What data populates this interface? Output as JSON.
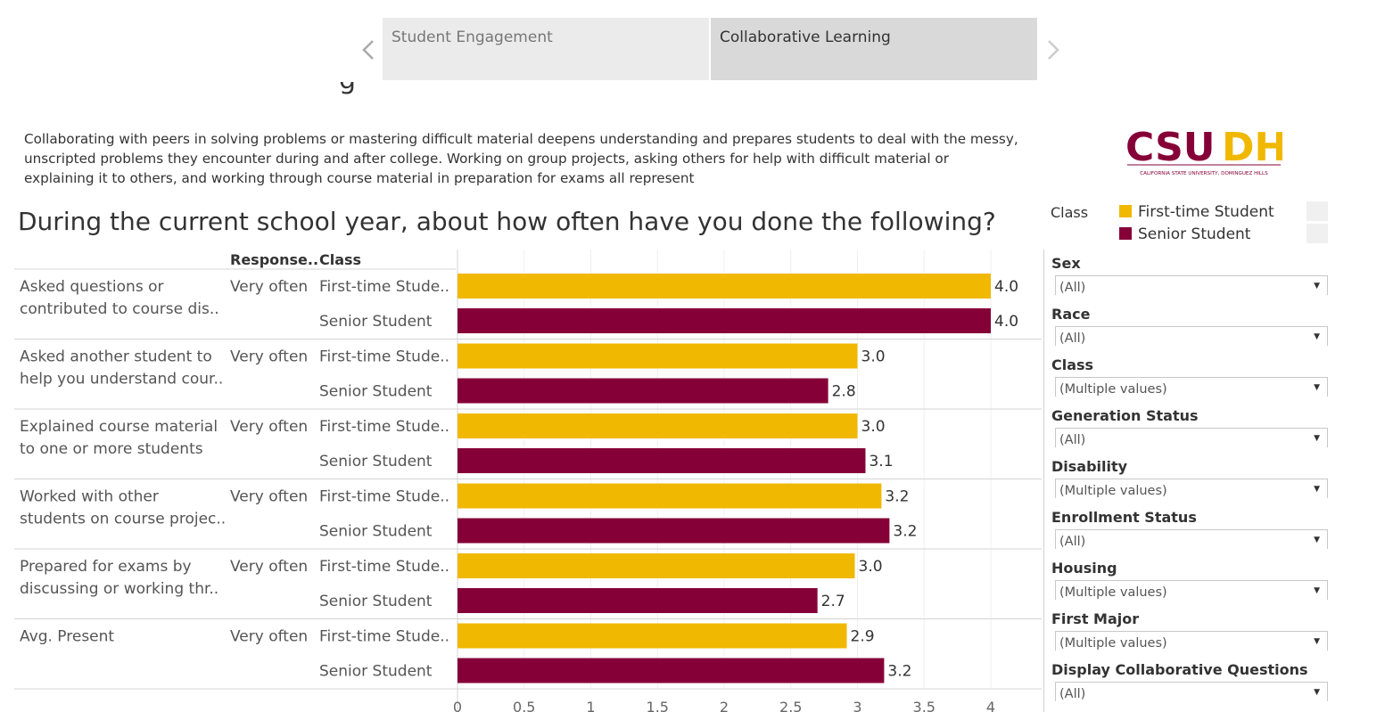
{
  "story_nav": {
    "tabs": [
      {
        "label": "Student Engagement",
        "active": false
      },
      {
        "label": "Collaborative Learning",
        "active": true
      }
    ]
  },
  "intro_text": "Collaborating with peers in solving problems or mastering difficult material deepens understanding and prepares students to deal with the messy, unscripted problems they encounter during and after college. Working on group projects, asking others for help with difficult material or explaining it to others, and working through course material in preparation for exams all represent",
  "logo": {
    "text_main": "CSUDH",
    "text_sub": "CALIFORNIA STATE UNIVERSITY, DOMINGUEZ HILLS"
  },
  "question_title": "During the current school year, about how often have you done the following?",
  "legend": {
    "title": "Class",
    "items": [
      {
        "label": "First-time Student",
        "color": "#F0B800"
      },
      {
        "label": "Senior Student",
        "color": "#860038"
      }
    ]
  },
  "filters": [
    {
      "label": "Sex",
      "value": "(All)"
    },
    {
      "label": "Race",
      "value": "(All)"
    },
    {
      "label": "Class",
      "value": "(Multiple values)"
    },
    {
      "label": "Generation Status",
      "value": "(All)"
    },
    {
      "label": "Disability",
      "value": "(Multiple values)"
    },
    {
      "label": "Enrollment Status",
      "value": "(All)"
    },
    {
      "label": "Housing",
      "value": "(Multiple values)"
    },
    {
      "label": "First Major",
      "value": "(Multiple values)"
    },
    {
      "label": "Display Collaborative Questions",
      "value": "(All)"
    }
  ],
  "chart_data": {
    "type": "bar",
    "orientation": "horizontal",
    "column_headers": {
      "response": "Response..",
      "class": "Class"
    },
    "xlim": [
      0,
      4.35
    ],
    "x_ticks": [
      "0",
      "0.5",
      "1",
      "1.5",
      "2",
      "2.5",
      "3",
      "3.5",
      "4"
    ],
    "grid": true,
    "groups": [
      {
        "question": [
          "Asked questions or",
          "contributed to course dis.."
        ],
        "response": "Very often",
        "bars": [
          {
            "class": "First-time Stude..",
            "series": 0,
            "value": 4.0,
            "label": "4.0"
          },
          {
            "class": "Senior Student",
            "series": 1,
            "value": 4.0,
            "label": "4.0"
          }
        ]
      },
      {
        "question": [
          "Asked another student to",
          "help you understand cour.."
        ],
        "response": "Very often",
        "bars": [
          {
            "class": "First-time Stude..",
            "series": 0,
            "value": 3.0,
            "label": "3.0"
          },
          {
            "class": "Senior Student",
            "series": 1,
            "value": 2.78,
            "label": "2.8"
          }
        ]
      },
      {
        "question": [
          "Explained course material",
          "to one or more students"
        ],
        "response": "Very often",
        "bars": [
          {
            "class": "First-time Stude..",
            "series": 0,
            "value": 3.0,
            "label": "3.0"
          },
          {
            "class": "Senior Student",
            "series": 1,
            "value": 3.06,
            "label": "3.1"
          }
        ]
      },
      {
        "question": [
          "Worked with other",
          "students on course projec.."
        ],
        "response": "Very often",
        "bars": [
          {
            "class": "First-time Stude..",
            "series": 0,
            "value": 3.18,
            "label": "3.2"
          },
          {
            "class": "Senior Student",
            "series": 1,
            "value": 3.24,
            "label": "3.2"
          }
        ]
      },
      {
        "question": [
          "Prepared for exams by",
          "discussing or working thr.."
        ],
        "response": "Very often",
        "bars": [
          {
            "class": "First-time Stude..",
            "series": 0,
            "value": 2.98,
            "label": "3.0"
          },
          {
            "class": "Senior Student",
            "series": 1,
            "value": 2.7,
            "label": "2.7"
          }
        ]
      },
      {
        "question": [
          "Avg. Present"
        ],
        "response": "Very often",
        "bars": [
          {
            "class": "First-time Stude..",
            "series": 0,
            "value": 2.92,
            "label": "2.9"
          },
          {
            "class": "Senior Student",
            "series": 1,
            "value": 3.2,
            "label": "3.2"
          }
        ]
      }
    ]
  }
}
